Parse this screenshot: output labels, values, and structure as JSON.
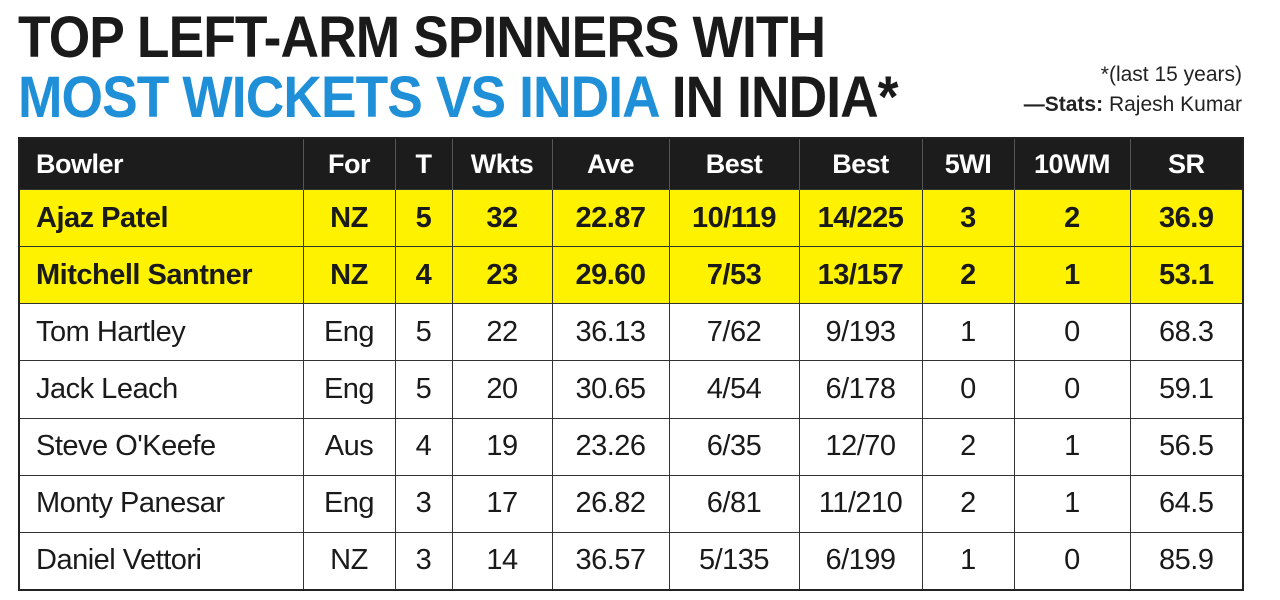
{
  "title": {
    "line1": "TOP LEFT-ARM SPINNERS WITH",
    "line2_blue": "MOST WICKETS VS INDIA",
    "line2_dark": " IN INDIA*"
  },
  "notes": {
    "footnote": "*(last 15 years)",
    "stats_prefix": "—Stats:",
    "stats_name": " Rajesh Kumar"
  },
  "colors": {
    "accent_blue": "#1f8fd8",
    "highlight": "#fff200",
    "header_bg": "#1c1c1c"
  },
  "chart_data": {
    "type": "table",
    "columns": [
      "Bowler",
      "For",
      "T",
      "Wkts",
      "Ave",
      "Best",
      "Best",
      "5WI",
      "10WM",
      "SR"
    ],
    "rows": [
      {
        "cells": [
          "Ajaz Patel",
          "NZ",
          "5",
          "32",
          "22.87",
          "10/119",
          "14/225",
          "3",
          "2",
          "36.9"
        ],
        "highlighted": true
      },
      {
        "cells": [
          "Mitchell Santner",
          "NZ",
          "4",
          "23",
          "29.60",
          "7/53",
          "13/157",
          "2",
          "1",
          "53.1"
        ],
        "highlighted": true
      },
      {
        "cells": [
          "Tom Hartley",
          "Eng",
          "5",
          "22",
          "36.13",
          "7/62",
          "9/193",
          "1",
          "0",
          "68.3"
        ],
        "highlighted": false
      },
      {
        "cells": [
          "Jack Leach",
          "Eng",
          "5",
          "20",
          "30.65",
          "4/54",
          "6/178",
          "0",
          "0",
          "59.1"
        ],
        "highlighted": false
      },
      {
        "cells": [
          "Steve O'Keefe",
          "Aus",
          "4",
          "19",
          "23.26",
          "6/35",
          "12/70",
          "2",
          "1",
          "56.5"
        ],
        "highlighted": false
      },
      {
        "cells": [
          "Monty Panesar",
          "Eng",
          "3",
          "17",
          "26.82",
          "6/81",
          "11/210",
          "2",
          "1",
          "64.5"
        ],
        "highlighted": false
      },
      {
        "cells": [
          "Daniel Vettori",
          "NZ",
          "3",
          "14",
          "36.57",
          "5/135",
          "6/199",
          "1",
          "0",
          "85.9"
        ],
        "highlighted": false
      }
    ]
  }
}
